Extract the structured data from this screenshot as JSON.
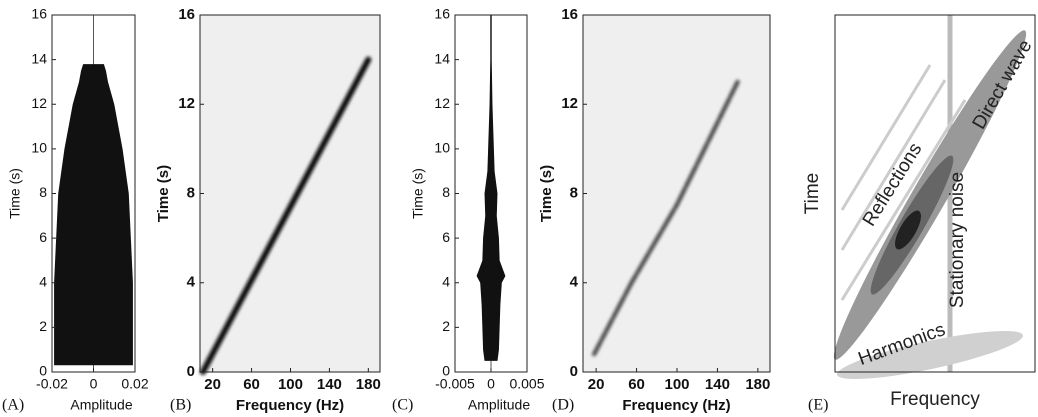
{
  "chart_data": [
    {
      "type": "envelope",
      "label": "(A)",
      "xlabel": "Amplitude",
      "ylabel": "Time (s)",
      "time": [
        0.3,
        1,
        2,
        4,
        6,
        8,
        10,
        11,
        12,
        13,
        13.5,
        13.8
      ],
      "values": [
        0.019,
        0.019,
        0.019,
        0.019,
        0.018,
        0.017,
        0.014,
        0.012,
        0.01,
        0.007,
        0.006,
        0.005
      ],
      "color": "#111111",
      "xlim": [
        -0.02,
        0.02
      ],
      "xticks": [
        -0.02,
        0,
        0.02
      ],
      "ylim": [
        0,
        16
      ],
      "yticks": [
        0,
        2,
        4,
        6,
        8,
        10,
        12,
        14,
        16
      ]
    },
    {
      "type": "line",
      "label": "(B)",
      "xlabel": "Frequency (Hz)",
      "ylabel": "Time (s)",
      "x": [
        10,
        180
      ],
      "values": [
        0,
        14
      ],
      "color": "#111111",
      "xlim": [
        7,
        192
      ],
      "xticks": [
        20,
        60,
        100,
        140,
        180
      ],
      "ylim": [
        0,
        16
      ],
      "yticks": [
        0,
        4,
        8,
        12,
        16
      ]
    },
    {
      "type": "envelope",
      "label": "(C)",
      "xlabel": "Amplitude",
      "ylabel": "Time (s)",
      "time": [
        0.5,
        1,
        2,
        3,
        4,
        4.3,
        5,
        6,
        7,
        8,
        9,
        10,
        12,
        14,
        16
      ],
      "values": [
        0.0009,
        0.0011,
        0.0012,
        0.0013,
        0.0015,
        0.002,
        0.0012,
        0.0011,
        0.0008,
        0.0009,
        0.0005,
        0.0004,
        0.0002,
        0.0001,
        0.0001
      ],
      "color": "#111111",
      "xlim": [
        -0.005,
        0.005
      ],
      "xticks": [
        -0.005,
        0,
        0.005
      ],
      "ylim": [
        0,
        16
      ],
      "yticks": [
        0,
        2,
        4,
        6,
        8,
        10,
        12,
        14,
        16
      ]
    },
    {
      "type": "line",
      "label": "(D)",
      "xlabel": "Frequency (Hz)",
      "ylabel": "Time (s)",
      "x": [
        18,
        55,
        100,
        160
      ],
      "values": [
        0.8,
        4,
        7.5,
        13
      ],
      "color": "#111111",
      "xlim": [
        7,
        192
      ],
      "xticks": [
        20,
        60,
        100,
        140,
        180
      ],
      "ylim": [
        0,
        16
      ],
      "yticks": [
        0,
        4,
        8,
        12,
        16
      ]
    },
    {
      "type": "schematic",
      "label": "(E)",
      "xlabel": "Frequency",
      "ylabel": "Time",
      "annotations": [
        "Reflections",
        "Direct wave",
        "Stationary noise",
        "Harmonics"
      ]
    }
  ]
}
